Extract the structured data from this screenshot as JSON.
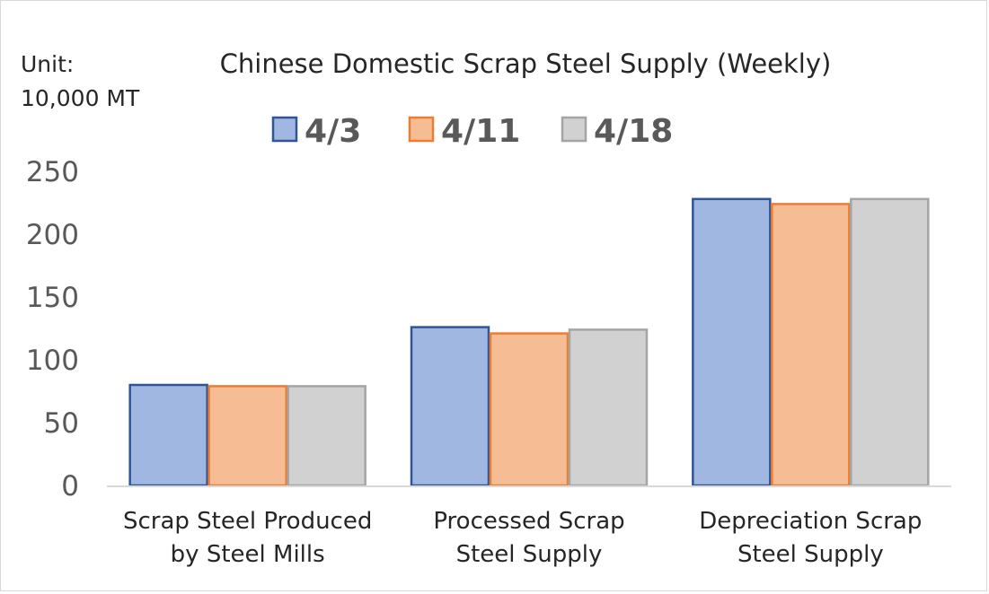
{
  "chart_data": {
    "type": "bar",
    "title": "Chinese Domestic Scrap Steel Supply (Weekly)",
    "unit_label": [
      "Unit:",
      "10,000 MT"
    ],
    "categories": [
      [
        "Scrap Steel Produced",
        "by Steel Mills"
      ],
      [
        "Processed Scrap",
        "Steel Supply"
      ],
      [
        "Depreciation Scrap",
        "Steel Supply"
      ]
    ],
    "series": [
      {
        "name": "4/3",
        "values": [
          80,
          126,
          228
        ],
        "fill": "#8faadc",
        "stroke": "#2f5597"
      },
      {
        "name": "4/11",
        "values": [
          79,
          121,
          224
        ],
        "fill": "#f4b183",
        "stroke": "#ed7d31"
      },
      {
        "name": "4/18",
        "values": [
          79,
          124,
          228
        ],
        "fill": "#c9c9c9",
        "stroke": "#a5a5a5"
      }
    ],
    "yticks": [
      "0",
      "50",
      "100",
      "150",
      "200",
      "250"
    ],
    "ylim": [
      0,
      250
    ],
    "legend_position": "top",
    "grid": false
  }
}
